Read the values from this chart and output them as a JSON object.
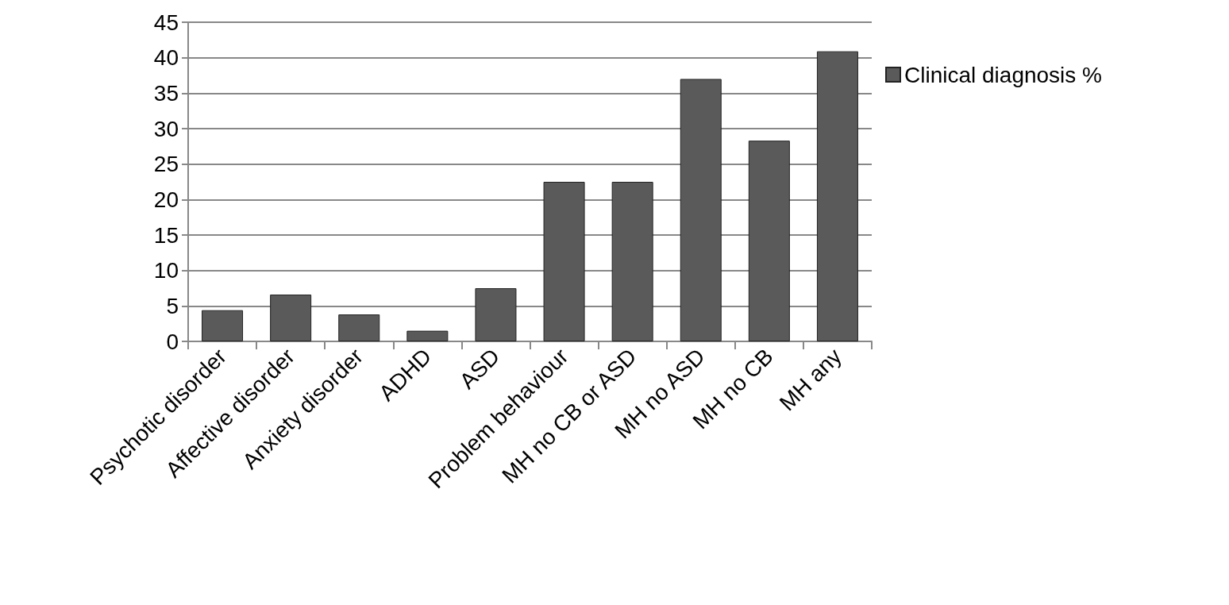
{
  "chart_data": {
    "type": "bar",
    "categories": [
      "Psychotic disorder",
      "Affective disorder",
      "Anxiety disorder",
      "ADHD",
      "ASD",
      "Problem behaviour",
      "MH no CB or ASD",
      "MH no ASD",
      "MH no CB",
      "MH any"
    ],
    "series": [
      {
        "name": "Clinical diagnosis %",
        "color": "#5a5a5a",
        "values": [
          4.4,
          6.6,
          3.8,
          1.5,
          7.5,
          22.5,
          22.5,
          37.0,
          28.3,
          40.9
        ]
      }
    ],
    "ylim": [
      0,
      45
    ],
    "yticks": [
      0,
      5,
      10,
      15,
      20,
      25,
      30,
      35,
      40,
      45
    ],
    "grid": "y",
    "legend": "right"
  }
}
